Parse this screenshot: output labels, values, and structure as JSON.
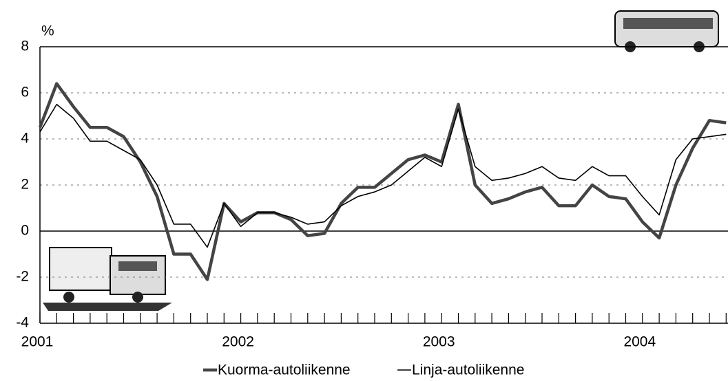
{
  "chart_data": {
    "type": "line",
    "y_label": "%",
    "categories": [
      "2001",
      null,
      null,
      null,
      null,
      null,
      null,
      null,
      null,
      null,
      null,
      null,
      "2002",
      null,
      null,
      null,
      null,
      null,
      null,
      null,
      null,
      null,
      null,
      null,
      "2003",
      null,
      null,
      null,
      null,
      null,
      null,
      null,
      null,
      null,
      null,
      null,
      "2004",
      null,
      null,
      null,
      null,
      null
    ],
    "series": [
      {
        "name": "Kuorma-autoliikenne",
        "color": "#444444",
        "values": [
          4.5,
          6.4,
          5.4,
          4.5,
          4.5,
          4.1,
          3.0,
          1.5,
          -1.0,
          -1.0,
          -2.1,
          1.2,
          0.4,
          0.8,
          0.8,
          0.5,
          -0.2,
          -0.1,
          1.2,
          1.9,
          1.9,
          2.5,
          3.1,
          3.3,
          3.0,
          5.5,
          2.0,
          1.2,
          1.4,
          1.7,
          1.9,
          1.1,
          1.1,
          2.0,
          1.5,
          1.4,
          0.4,
          -0.3,
          2.0,
          3.6,
          4.8,
          4.7
        ]
      },
      {
        "name": "Linja-autoliikenne",
        "color": "#000000",
        "values": [
          4.3,
          5.5,
          4.9,
          3.9,
          3.9,
          3.5,
          3.1,
          2.0,
          0.3,
          0.3,
          -0.7,
          1.2,
          0.2,
          0.8,
          0.8,
          0.6,
          0.3,
          0.4,
          1.1,
          1.5,
          1.7,
          2.0,
          2.6,
          3.2,
          2.8,
          5.3,
          2.8,
          2.2,
          2.3,
          2.5,
          2.8,
          2.3,
          2.2,
          2.8,
          2.4,
          2.4,
          1.5,
          0.7,
          3.1,
          4.0,
          4.1,
          4.2
        ]
      }
    ],
    "ylim": [
      -4,
      8
    ],
    "yticks": [
      -4,
      -2,
      0,
      2,
      4,
      6,
      8
    ],
    "grid": true
  }
}
